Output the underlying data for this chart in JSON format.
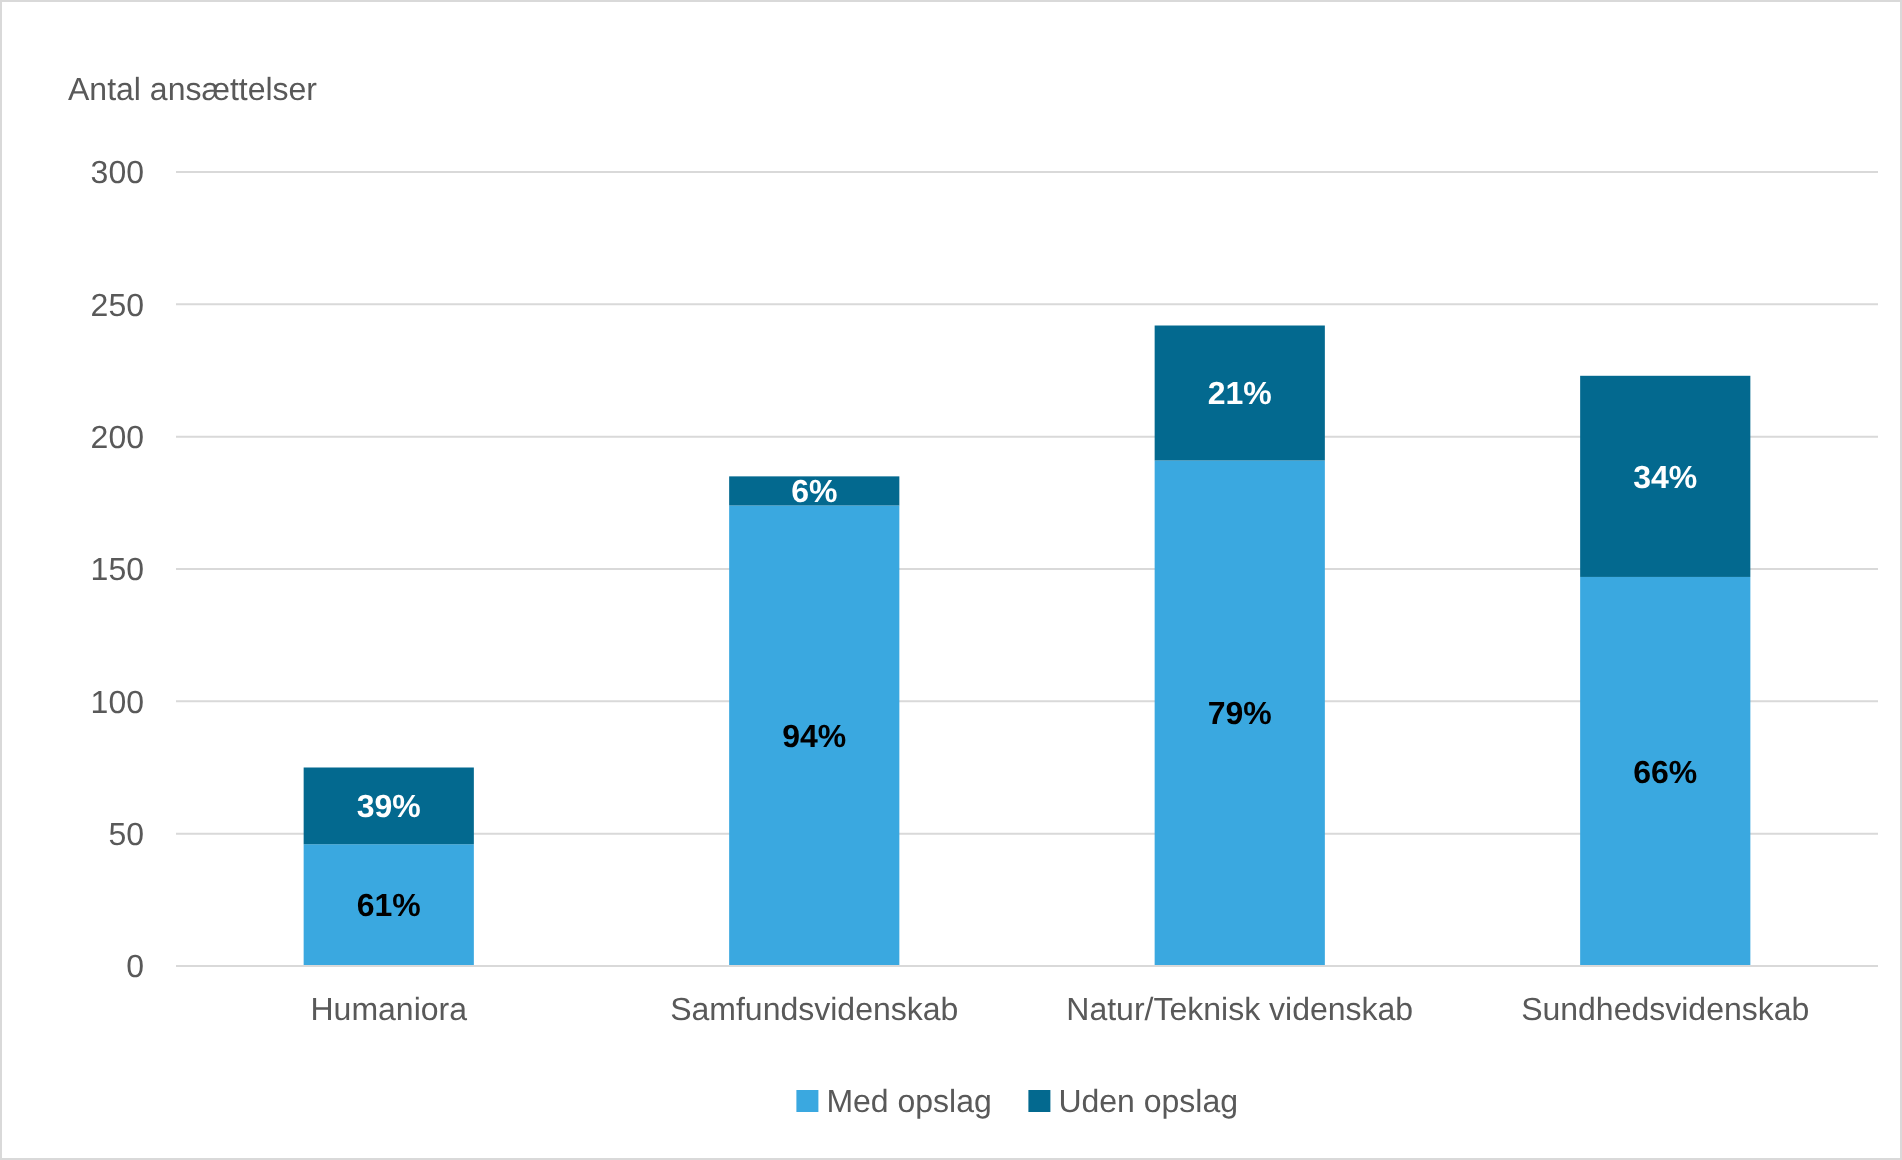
{
  "chart_data": {
    "type": "bar",
    "stacked": true,
    "ylabel": "Antal ansættelser",
    "categories": [
      "Humaniora",
      "Samfundsvidenskab",
      "Natur/Teknisk videnskab",
      "Sundhedsvidenskab"
    ],
    "series": [
      {
        "name": "Med opslag",
        "color": "#3aa8e0",
        "values": [
          46,
          174,
          191,
          147
        ]
      },
      {
        "name": "Uden opslag",
        "color": "#03698f",
        "values": [
          29,
          11,
          51,
          76
        ]
      }
    ],
    "annotations": [
      "61%",
      "39%",
      "94%",
      "6%",
      "79%",
      "21%",
      "66%",
      "34%"
    ],
    "ylim": [
      0,
      300
    ],
    "yticks": [
      0,
      50,
      100,
      150,
      200,
      250,
      300
    ],
    "grid": "y",
    "legend": "bottom"
  }
}
